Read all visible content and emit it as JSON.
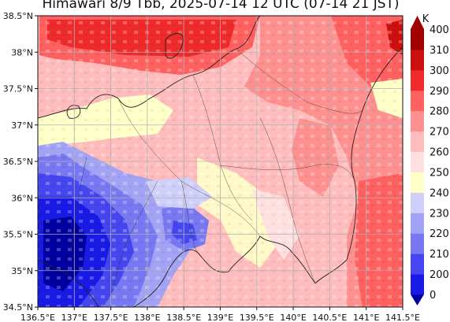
{
  "title": "Himawari 8/9 Tbb, 2025-07-14 12 UTC (07-14 21 JST)",
  "map": {
    "lon_range": [
      136.5,
      141.5
    ],
    "lat_range": [
      34.5,
      38.5
    ],
    "lon_ticks": [
      "136.5°E",
      "137°E",
      "137.5°E",
      "138°E",
      "138.5°E",
      "139°E",
      "139.5°E",
      "140°E",
      "140.5°E",
      "141°E",
      "141.5°E"
    ],
    "lat_ticks": [
      "34.5°N",
      "35°N",
      "35.5°N",
      "36°N",
      "36.5°N",
      "37°N",
      "37.5°N",
      "38°N",
      "38.5°N"
    ],
    "grid": true
  },
  "colorbar": {
    "unit": "K",
    "levels": [
      "0",
      "200",
      "210",
      "220",
      "230",
      "240",
      "250",
      "260",
      "270",
      "280",
      "290",
      "300",
      "310",
      "400"
    ],
    "colors": [
      "#0000a0",
      "#1a1ae6",
      "#4646f0",
      "#7878f2",
      "#a3a3f5",
      "#cfcffa",
      "#ffffc8",
      "#ffe0e0",
      "#ffbcbc",
      "#ff9090",
      "#ff6060",
      "#ee2a2a",
      "#cc1010",
      "#a00000"
    ]
  }
}
